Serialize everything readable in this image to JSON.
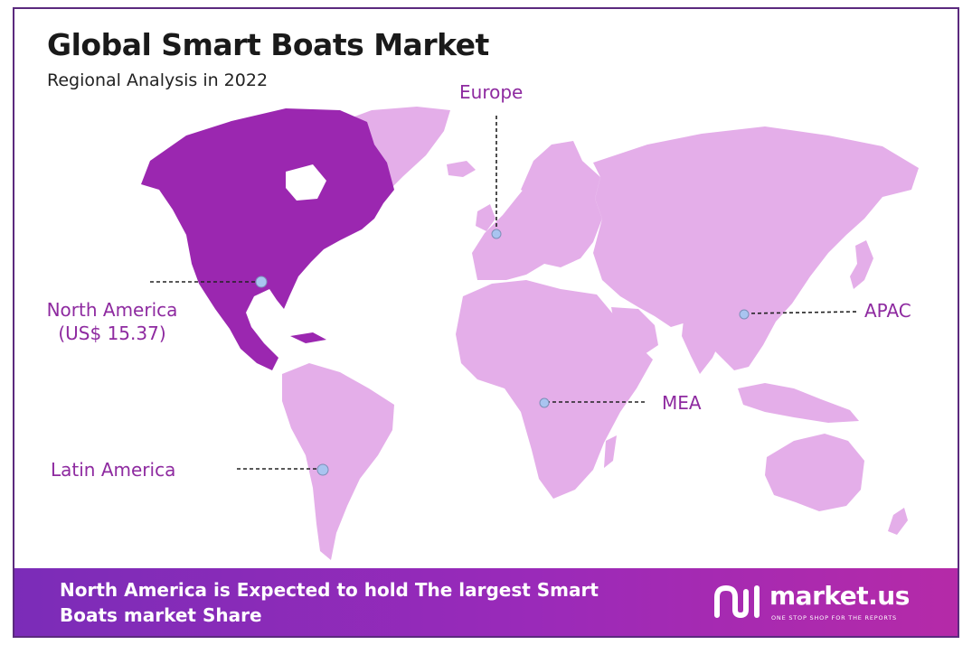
{
  "header": {
    "title": "Global Smart Boats Market",
    "subtitle": "Regional Analysis in 2022"
  },
  "regions": {
    "north_america": {
      "name": "North America",
      "value": "(US$ 15.37)"
    },
    "europe": {
      "name": "Europe"
    },
    "apac": {
      "name": "APAC"
    },
    "mea": {
      "name": "MEA"
    },
    "latin_america": {
      "name": "Latin America"
    }
  },
  "footer": {
    "headline": "North America is Expected to hold The largest Smart Boats market Share"
  },
  "brand": {
    "name": "market.us",
    "tagline": "ONE STOP SHOP FOR THE REPORTS"
  },
  "colors": {
    "highlight_region": "#9b27b0",
    "other_regions": "#e4aee9",
    "label_text": "#8e2aa0",
    "marker": "#a9c4f0",
    "footer_gradient_start": "#7b2cb8",
    "footer_gradient_end": "#b52aa8",
    "frame_border": "#5b2a7e"
  },
  "icons": {
    "brand_logo": "market-us-logo-icon",
    "marker": "location-dot-icon"
  }
}
